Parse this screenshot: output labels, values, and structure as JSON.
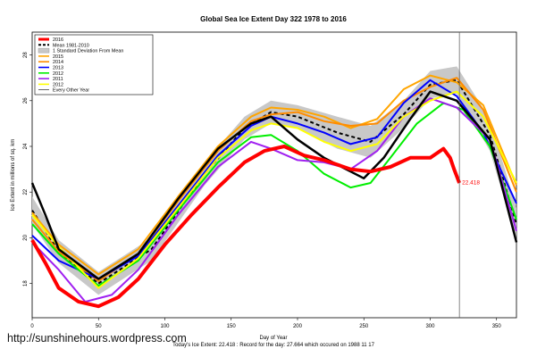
{
  "chart_data": {
    "type": "line",
    "title": "Global Sea Ice Extent Day 322 1978 to 2016",
    "xlabel": "Day of Year",
    "ylabel": "Ice Extent in millions of sq. km",
    "xlim": [
      0,
      365
    ],
    "ylim": [
      16.5,
      29
    ],
    "x_ticks": [
      "0",
      "50",
      "100",
      "150",
      "200",
      "250",
      "300",
      "350"
    ],
    "y_ticks": [
      "18",
      "20",
      "22",
      "24",
      "26",
      "28"
    ],
    "current_day": 322,
    "current_value": 22.418,
    "current_value_label": "22.418",
    "footer": "Today's Ice Extent: 22.418  :  Record for the day: 27.664 which occured on 1988 11 17",
    "grid": false,
    "legend_position": "top-left",
    "legend": [
      {
        "label": "2016",
        "color": "#ff0000",
        "style": "thick"
      },
      {
        "label": "Mean 1981-2010",
        "color": "#000000",
        "style": "dashed"
      },
      {
        "label": "1 Standard Deviation From Mean",
        "color": "#bbbbbb",
        "style": "band"
      },
      {
        "label": "2015",
        "color": "#ffa500",
        "style": "line"
      },
      {
        "label": "2014",
        "color": "#ff8c00",
        "style": "line"
      },
      {
        "label": "2013",
        "color": "#0000ff",
        "style": "line"
      },
      {
        "label": "2012",
        "color": "#00ee00",
        "style": "line"
      },
      {
        "label": "2011",
        "color": "#a020f0",
        "style": "line"
      },
      {
        "label": "2012",
        "color": "#ffff00",
        "style": "line"
      },
      {
        "label": "Every Other Year",
        "color": "#000000",
        "style": "thin"
      }
    ],
    "mean": {
      "x": [
        0,
        20,
        50,
        90,
        130,
        160,
        180,
        200,
        230,
        255,
        280,
        300,
        320,
        345,
        365
      ],
      "y": [
        21.2,
        19.4,
        18.0,
        19.5,
        22.8,
        24.8,
        25.5,
        25.3,
        24.6,
        24.2,
        25.4,
        26.7,
        26.9,
        24.5,
        20.6
      ]
    },
    "std_band": {
      "x": [
        0,
        20,
        50,
        90,
        130,
        160,
        180,
        200,
        230,
        255,
        280,
        300,
        320,
        345,
        365
      ],
      "upper": [
        21.8,
        19.9,
        18.5,
        20.0,
        23.3,
        25.3,
        26.0,
        25.8,
        25.3,
        24.9,
        26.0,
        27.3,
        27.5,
        25.2,
        21.3
      ],
      "lower": [
        20.6,
        18.9,
        17.5,
        19.0,
        22.3,
        24.3,
        25.0,
        24.8,
        23.9,
        23.5,
        24.8,
        26.1,
        26.3,
        23.8,
        19.9
      ]
    },
    "series": [
      {
        "name": "2016",
        "color": "#ff0000",
        "width": 4,
        "x": [
          0,
          10,
          20,
          35,
          50,
          65,
          80,
          100,
          120,
          140,
          160,
          175,
          190,
          205,
          220,
          240,
          255,
          270,
          285,
          300,
          310,
          315,
          318,
          322
        ],
        "y": [
          19.9,
          18.9,
          17.8,
          17.2,
          17.0,
          17.4,
          18.2,
          19.7,
          21.0,
          22.2,
          23.3,
          23.8,
          24.0,
          23.6,
          23.4,
          23.0,
          22.9,
          23.1,
          23.5,
          23.5,
          23.9,
          23.5,
          23.0,
          22.4
        ]
      },
      {
        "name": "2015",
        "color": "#ffa500",
        "width": 2,
        "x": [
          0,
          20,
          50,
          80,
          110,
          140,
          165,
          180,
          200,
          220,
          240,
          260,
          280,
          300,
          320,
          340,
          365
        ],
        "y": [
          21.1,
          19.7,
          18.4,
          19.5,
          21.8,
          24.0,
          25.3,
          25.7,
          25.6,
          25.3,
          24.8,
          25.2,
          26.5,
          27.1,
          26.8,
          25.8,
          22.3
        ]
      },
      {
        "name": "2014",
        "color": "#ff8c00",
        "width": 2,
        "x": [
          0,
          20,
          50,
          80,
          110,
          140,
          165,
          180,
          200,
          220,
          240,
          260,
          280,
          300,
          320,
          340,
          365
        ],
        "y": [
          20.8,
          19.4,
          18.1,
          19.3,
          21.6,
          23.8,
          25.1,
          25.4,
          25.5,
          25.1,
          24.9,
          25.0,
          26.0,
          26.6,
          27.0,
          25.6,
          22.0
        ]
      },
      {
        "name": "2013",
        "color": "#0000ff",
        "width": 2,
        "x": [
          0,
          20,
          50,
          80,
          110,
          140,
          165,
          180,
          200,
          220,
          240,
          260,
          280,
          300,
          320,
          340,
          365
        ],
        "y": [
          20.1,
          19.0,
          18.2,
          19.2,
          21.4,
          23.6,
          24.9,
          25.3,
          25.0,
          24.6,
          24.1,
          24.4,
          25.9,
          26.9,
          26.2,
          24.6,
          21.5
        ]
      },
      {
        "name": "2012",
        "color": "#00ee00",
        "width": 2,
        "x": [
          0,
          20,
          50,
          80,
          110,
          140,
          165,
          180,
          200,
          220,
          240,
          255,
          270,
          290,
          310,
          325,
          345,
          365
        ],
        "y": [
          20.6,
          19.3,
          17.9,
          19.0,
          21.2,
          23.3,
          24.4,
          24.5,
          23.8,
          22.8,
          22.2,
          22.4,
          23.5,
          25.0,
          25.9,
          25.6,
          24.0,
          20.8
        ]
      },
      {
        "name": "2011",
        "color": "#a020f0",
        "width": 2,
        "x": [
          0,
          20,
          40,
          60,
          80,
          110,
          140,
          165,
          180,
          200,
          220,
          240,
          260,
          280,
          300,
          320,
          345,
          365
        ],
        "y": [
          19.8,
          18.6,
          17.2,
          17.5,
          18.6,
          21.0,
          23.1,
          24.2,
          23.9,
          23.4,
          23.3,
          23.0,
          23.8,
          25.3,
          26.1,
          25.7,
          24.3,
          20.3
        ]
      },
      {
        "name": "2012",
        "color": "#ffff00",
        "width": 2,
        "x": [
          0,
          20,
          50,
          80,
          110,
          140,
          165,
          180,
          200,
          220,
          240,
          260,
          280,
          300,
          320,
          340,
          365
        ],
        "y": [
          21.0,
          19.6,
          17.8,
          19.1,
          21.3,
          23.5,
          24.7,
          25.0,
          24.8,
          24.2,
          23.8,
          24.1,
          25.3,
          26.0,
          26.4,
          25.3,
          22.4
        ]
      },
      {
        "name": "Every Other Year",
        "color": "#000000",
        "width": 2.5,
        "x": [
          0,
          10,
          20,
          50,
          80,
          110,
          140,
          165,
          180,
          200,
          220,
          240,
          250,
          265,
          285,
          300,
          320,
          345,
          365
        ],
        "y": [
          22.4,
          21.0,
          19.5,
          18.2,
          19.3,
          21.7,
          23.9,
          25.0,
          25.3,
          24.3,
          23.5,
          22.9,
          22.6,
          23.5,
          25.2,
          26.4,
          26.0,
          24.3,
          19.8
        ]
      }
    ]
  },
  "watermark": "http://sunshinehours.wordpress.com"
}
